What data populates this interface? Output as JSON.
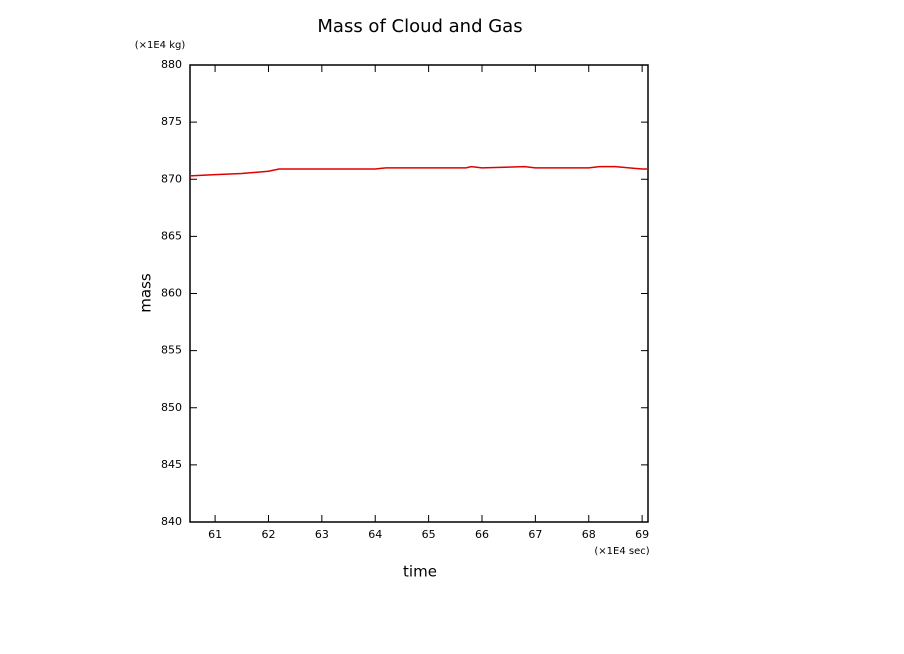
{
  "chart_data": {
    "type": "line",
    "title": "Mass of Cloud and Gas",
    "x_label": "time",
    "y_label": "mass",
    "x_unit": "(×1E4 sec)",
    "y_unit": "(×1E4 kg)",
    "xlim": [
      60.53,
      69.11
    ],
    "ylim": [
      840,
      880
    ],
    "xticks": [
      61,
      62,
      63,
      64,
      65,
      66,
      67,
      68,
      69
    ],
    "yticks": [
      840,
      845,
      850,
      855,
      860,
      865,
      870,
      875,
      880
    ],
    "x": [
      60.53,
      61,
      61.5,
      62,
      62.2,
      63,
      64,
      64.2,
      65,
      65.7,
      65.8,
      66,
      66.8,
      67,
      68,
      68.2,
      68.5,
      69,
      69.11
    ],
    "series": [
      {
        "color": "#e00000",
        "values": [
          870.3,
          870.4,
          870.5,
          870.7,
          870.9,
          870.9,
          870.9,
          871.0,
          871.0,
          871.0,
          871.1,
          871.0,
          871.1,
          871.0,
          871.0,
          871.1,
          871.1,
          870.9,
          870.9
        ]
      }
    ]
  }
}
